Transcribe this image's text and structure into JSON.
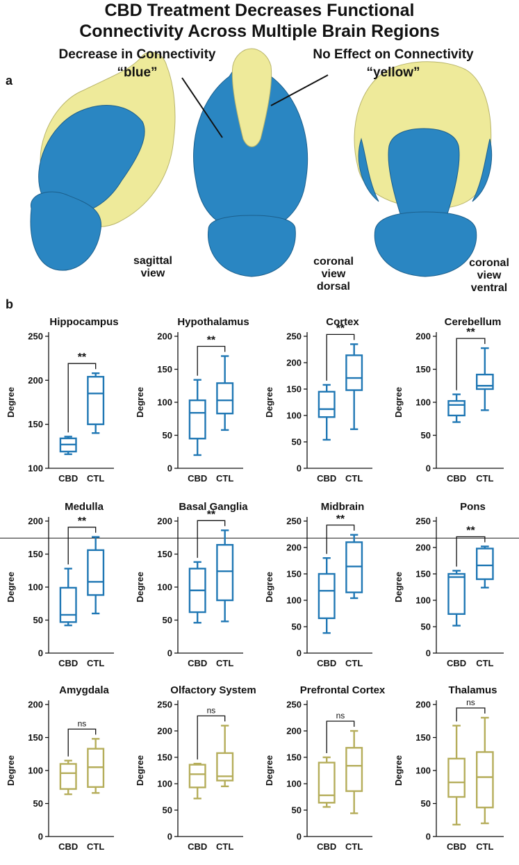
{
  "figure": {
    "title_line1": "CBD Treatment Decreases Functional",
    "title_line2": "Connectivity Across Multiple Brain Regions",
    "panel_a_label": "a",
    "panel_b_label": "b",
    "callout_decrease_line1": "Decrease in Connectivity",
    "callout_decrease_line2": "“blue”",
    "callout_noeffect_line1": "No Effect on Connectivity",
    "callout_noeffect_line2": "“yellow”",
    "view_sagittal": [
      "sagittal",
      "view"
    ],
    "view_dorsal": [
      "coronal",
      "view",
      "dorsal"
    ],
    "view_ventral": [
      "coronal",
      "view",
      "ventral"
    ],
    "colors": {
      "decrease_blue": "#1f77b4",
      "noeffect_yellow": "#b5ad5a",
      "brain_blue": "#2a86c2",
      "brain_yellow": "#eeea9a"
    }
  },
  "chart_data": [
    {
      "type": "box",
      "title": "Hippocampus",
      "ylabel": "Degree",
      "categories": [
        "CBD",
        "CTL"
      ],
      "ylim": [
        100,
        250
      ],
      "yticks": [
        100,
        150,
        200,
        250
      ],
      "significance": "**",
      "color": "#1f77b4",
      "boxes": [
        {
          "min": 116,
          "q1": 119,
          "median": 127,
          "q3": 134,
          "max": 136
        },
        {
          "min": 140,
          "q1": 150,
          "median": 185,
          "q3": 204,
          "max": 208
        }
      ]
    },
    {
      "type": "box",
      "title": "Hypothalamus",
      "ylabel": "Degree",
      "categories": [
        "CBD",
        "CTL"
      ],
      "ylim": [
        0,
        200
      ],
      "yticks": [
        0,
        50,
        100,
        150,
        200
      ],
      "significance": "**",
      "color": "#1f77b4",
      "boxes": [
        {
          "min": 20,
          "q1": 45,
          "median": 84,
          "q3": 103,
          "max": 134
        },
        {
          "min": 58,
          "q1": 83,
          "median": 103,
          "q3": 129,
          "max": 170
        }
      ]
    },
    {
      "type": "box",
      "title": "Cortex",
      "ylabel": "Degree",
      "categories": [
        "CBD",
        "CTL"
      ],
      "ylim": [
        0,
        250
      ],
      "yticks": [
        0,
        50,
        100,
        150,
        200,
        250
      ],
      "significance": "**",
      "color": "#1f77b4",
      "boxes": [
        {
          "min": 54,
          "q1": 97,
          "median": 112,
          "q3": 145,
          "max": 158
        },
        {
          "min": 74,
          "q1": 148,
          "median": 171,
          "q3": 214,
          "max": 235
        }
      ]
    },
    {
      "type": "box",
      "title": "Cerebellum",
      "ylabel": "Degree",
      "categories": [
        "CBD",
        "CTL"
      ],
      "ylim": [
        0,
        200
      ],
      "yticks": [
        0,
        50,
        100,
        150,
        200
      ],
      "significance": "**",
      "color": "#1f77b4",
      "boxes": [
        {
          "min": 70,
          "q1": 80,
          "median": 96,
          "q3": 102,
          "max": 112
        },
        {
          "min": 88,
          "q1": 120,
          "median": 125,
          "q3": 142,
          "max": 182
        }
      ]
    },
    {
      "type": "box",
      "title": "Medulla",
      "ylabel": "Degree",
      "categories": [
        "CBD",
        "CTL"
      ],
      "ylim": [
        0,
        200
      ],
      "yticks": [
        0,
        50,
        100,
        150,
        200
      ],
      "significance": "**",
      "color": "#1f77b4",
      "boxes": [
        {
          "min": 42,
          "q1": 47,
          "median": 58,
          "q3": 99,
          "max": 128
        },
        {
          "min": 60,
          "q1": 88,
          "median": 108,
          "q3": 156,
          "max": 176
        }
      ]
    },
    {
      "type": "box",
      "title": "Basal Ganglia",
      "ylabel": "Degree",
      "categories": [
        "CBD",
        "CTL"
      ],
      "ylim": [
        0,
        200
      ],
      "yticks": [
        0,
        50,
        100,
        150,
        200
      ],
      "significance": "**",
      "color": "#1f77b4",
      "boxes": [
        {
          "min": 46,
          "q1": 62,
          "median": 95,
          "q3": 128,
          "max": 138
        },
        {
          "min": 48,
          "q1": 80,
          "median": 124,
          "q3": 164,
          "max": 186
        }
      ]
    },
    {
      "type": "box",
      "title": "Midbrain",
      "ylabel": "Degree",
      "categories": [
        "CBD",
        "CTL"
      ],
      "ylim": [
        0,
        250
      ],
      "yticks": [
        0,
        50,
        100,
        150,
        200,
        250
      ],
      "significance": "**",
      "color": "#1f77b4",
      "boxes": [
        {
          "min": 38,
          "q1": 66,
          "median": 118,
          "q3": 150,
          "max": 180
        },
        {
          "min": 104,
          "q1": 115,
          "median": 164,
          "q3": 210,
          "max": 224
        }
      ]
    },
    {
      "type": "box",
      "title": "Pons",
      "ylabel": "Degree",
      "categories": [
        "CBD",
        "CTL"
      ],
      "ylim": [
        0,
        250
      ],
      "yticks": [
        0,
        50,
        100,
        150,
        200,
        250
      ],
      "significance": "**",
      "color": "#1f77b4",
      "boxes": [
        {
          "min": 52,
          "q1": 74,
          "median": 144,
          "q3": 150,
          "max": 156
        },
        {
          "min": 124,
          "q1": 140,
          "median": 166,
          "q3": 198,
          "max": 202
        }
      ]
    },
    {
      "type": "box",
      "title": "Amygdala",
      "ylabel": "Degree",
      "categories": [
        "CBD",
        "CTL"
      ],
      "ylim": [
        0,
        200
      ],
      "yticks": [
        0,
        50,
        100,
        150,
        200
      ],
      "significance": "ns",
      "color": "#b5ad5a",
      "boxes": [
        {
          "min": 64,
          "q1": 72,
          "median": 96,
          "q3": 110,
          "max": 115
        },
        {
          "min": 66,
          "q1": 75,
          "median": 105,
          "q3": 133,
          "max": 148
        }
      ]
    },
    {
      "type": "box",
      "title": "Olfactory System",
      "ylabel": "Degree",
      "categories": [
        "CBD",
        "CTL"
      ],
      "ylim": [
        0,
        250
      ],
      "yticks": [
        0,
        50,
        100,
        150,
        200,
        250
      ],
      "significance": "ns",
      "color": "#b5ad5a",
      "boxes": [
        {
          "min": 72,
          "q1": 93,
          "median": 118,
          "q3": 136,
          "max": 138
        },
        {
          "min": 95,
          "q1": 106,
          "median": 114,
          "q3": 158,
          "max": 210
        }
      ]
    },
    {
      "type": "box",
      "title": "Prefrontal Cortex",
      "ylabel": "Degree",
      "categories": [
        "CBD",
        "CTL"
      ],
      "ylim": [
        0,
        250
      ],
      "yticks": [
        0,
        50,
        100,
        150,
        200,
        250
      ],
      "significance": "ns",
      "color": "#b5ad5a",
      "boxes": [
        {
          "min": 56,
          "q1": 64,
          "median": 78,
          "q3": 140,
          "max": 150
        },
        {
          "min": 44,
          "q1": 86,
          "median": 134,
          "q3": 168,
          "max": 200
        }
      ]
    },
    {
      "type": "box",
      "title": "Thalamus",
      "ylabel": "Degree",
      "categories": [
        "CBD",
        "CTL"
      ],
      "ylim": [
        0,
        200
      ],
      "yticks": [
        0,
        50,
        100,
        150,
        200
      ],
      "significance": "ns",
      "color": "#b5ad5a",
      "boxes": [
        {
          "min": 18,
          "q1": 60,
          "median": 82,
          "q3": 118,
          "max": 168
        },
        {
          "min": 20,
          "q1": 44,
          "median": 90,
          "q3": 128,
          "max": 180
        }
      ]
    }
  ]
}
